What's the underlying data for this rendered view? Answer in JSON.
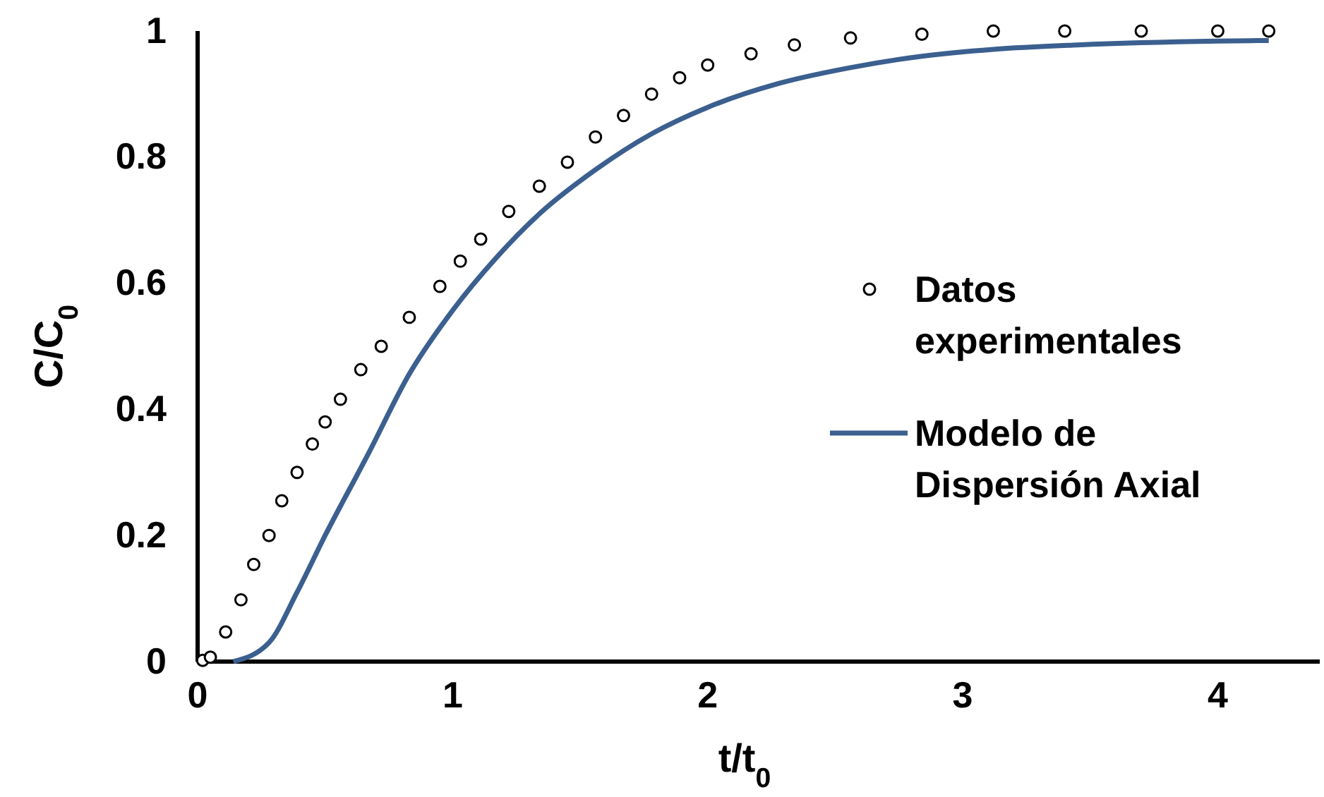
{
  "chart_data": {
    "type": "scatter",
    "xlabel": "t/t$_{0}$",
    "ylabel": "C/C$_{0}$",
    "xlim": [
      0,
      4.4
    ],
    "ylim": [
      0,
      1
    ],
    "xticks": [
      0,
      1,
      2,
      3,
      4
    ],
    "yticks": [
      0,
      0.2,
      0.4,
      0.6,
      0.8,
      1
    ],
    "grid": false,
    "legend": "right",
    "series": [
      {
        "name": "Datos experimentales",
        "marker": "circle",
        "color": "#000000",
        "x": [
          0.02,
          0.05,
          0.11,
          0.17,
          0.22,
          0.28,
          0.33,
          0.39,
          0.45,
          0.5,
          0.56,
          0.64,
          0.72,
          0.83,
          0.95,
          1.03,
          1.11,
          1.22,
          1.34,
          1.45,
          1.56,
          1.67,
          1.78,
          1.89,
          2.0,
          2.17,
          2.34,
          2.56,
          2.84,
          3.12,
          3.4,
          3.7,
          4.0,
          4.2
        ],
        "values": [
          0.002,
          0.007,
          0.047,
          0.098,
          0.154,
          0.2,
          0.255,
          0.3,
          0.345,
          0.38,
          0.416,
          0.463,
          0.5,
          0.546,
          0.595,
          0.635,
          0.67,
          0.714,
          0.754,
          0.792,
          0.832,
          0.866,
          0.9,
          0.926,
          0.946,
          0.964,
          0.978,
          0.989,
          0.995,
          1.0,
          1.0,
          1.0,
          1.0,
          1.0
        ]
      },
      {
        "name": "Modelo de Dispersión Axial",
        "type": "line",
        "line_style": "solid",
        "color": "#3b5f8f",
        "x": [
          0.14,
          0.28,
          0.39,
          0.5,
          0.67,
          0.83,
          1.0,
          1.17,
          1.34,
          1.56,
          1.78,
          2.0,
          2.28,
          2.56,
          2.84,
          3.12,
          3.45,
          4.0,
          4.2
        ],
        "values": [
          0,
          0.03,
          0.11,
          0.2,
          0.33,
          0.456,
          0.557,
          0.64,
          0.71,
          0.78,
          0.837,
          0.879,
          0.917,
          0.942,
          0.96,
          0.971,
          0.978,
          0.984,
          0.985
        ]
      }
    ]
  }
}
